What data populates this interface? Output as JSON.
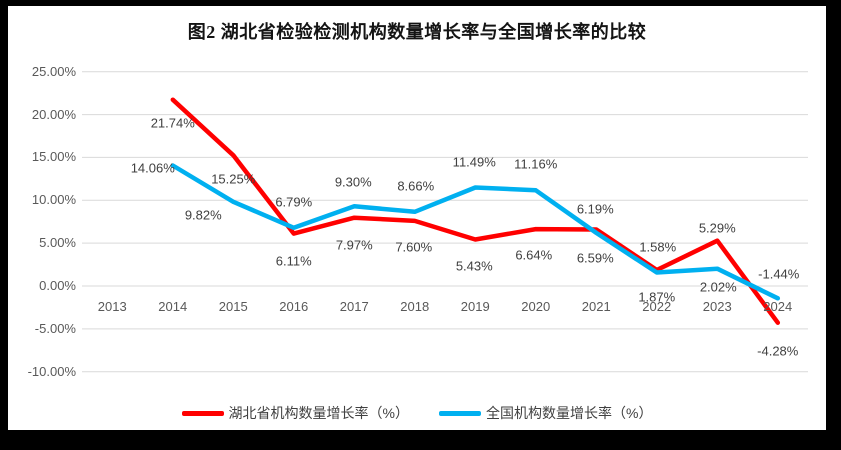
{
  "window": {
    "frame_color": "#000000",
    "canvas_color": "#ffffff"
  },
  "chart_data": {
    "type": "line",
    "title": "图2 湖北省检验检测机构数量增长率与全国增长率的比较",
    "xlabel": "",
    "ylabel": "",
    "categories": [
      "2013",
      "2014",
      "2015",
      "2016",
      "2017",
      "2018",
      "2019",
      "2020",
      "2021",
      "2022",
      "2023",
      "2024"
    ],
    "ylim": [
      -10,
      25
    ],
    "grid": true,
    "legend_position": "bottom-center",
    "colors": {
      "grid": "#d9d9d9",
      "axis_text": "#595959",
      "data_label_text": "#404040"
    },
    "yticks": [
      {
        "value": 25,
        "label": "25.00%"
      },
      {
        "value": 20,
        "label": "20.00%"
      },
      {
        "value": 15,
        "label": "15.00%"
      },
      {
        "value": 10,
        "label": "10.00%"
      },
      {
        "value": 5,
        "label": "5.00%"
      },
      {
        "value": 0,
        "label": "0.00%"
      },
      {
        "value": -5,
        "label": "-5.00%"
      },
      {
        "value": -10,
        "label": "-10.00%"
      }
    ],
    "series": [
      {
        "id": "hubei",
        "name": "湖北省机构数量增长率（%）",
        "color": "#ff0000",
        "points": [
          {
            "x": "2014",
            "y": 21.74,
            "label": "21.74%",
            "label_offset": [
              0,
              23
            ]
          },
          {
            "x": "2015",
            "y": 15.25,
            "label": "15.25%",
            "label_offset": [
              0,
              24
            ]
          },
          {
            "x": "2016",
            "y": 6.11,
            "label": "6.11%",
            "label_offset": [
              0,
              27
            ]
          },
          {
            "x": "2017",
            "y": 7.97,
            "label": "7.97%",
            "label_offset": [
              0,
              27
            ]
          },
          {
            "x": "2018",
            "y": 7.6,
            "label": "7.60%",
            "label_offset": [
              -1,
              26
            ]
          },
          {
            "x": "2019",
            "y": 5.43,
            "label": "5.43%",
            "label_offset": [
              -1,
              27
            ]
          },
          {
            "x": "2020",
            "y": 6.64,
            "label": "6.64%",
            "label_offset": [
              -2,
              26
            ]
          },
          {
            "x": "2021",
            "y": 6.59,
            "label": "6.59%",
            "label_offset": [
              -1,
              28
            ]
          },
          {
            "x": "2022",
            "y": 1.87,
            "label": "1.87%",
            "label_offset": [
              0,
              27
            ]
          },
          {
            "x": "2023",
            "y": 5.29,
            "label": "5.29%",
            "label_offset": [
              0,
              -13
            ]
          },
          {
            "x": "2024",
            "y": -4.28,
            "label": "-4.28%",
            "label_offset": [
              0,
              28
            ]
          }
        ]
      },
      {
        "id": "national",
        "name": "全国机构数量增长率（%）",
        "color": "#00b0f0",
        "points": [
          {
            "x": "2014",
            "y": 14.06,
            "label": "14.06%",
            "label_offset": [
              -20,
              3
            ]
          },
          {
            "x": "2015",
            "y": 9.82,
            "label": "9.82%",
            "label_offset": [
              -30,
              13
            ]
          },
          {
            "x": "2016",
            "y": 6.79,
            "label": "6.79%",
            "label_offset": [
              0,
              -26
            ]
          },
          {
            "x": "2017",
            "y": 9.3,
            "label": "9.30%",
            "label_offset": [
              -1,
              -24
            ]
          },
          {
            "x": "2018",
            "y": 8.66,
            "label": "8.66%",
            "label_offset": [
              1,
              -26
            ]
          },
          {
            "x": "2019",
            "y": 11.49,
            "label": "11.49%",
            "label_offset": [
              -1,
              -26
            ]
          },
          {
            "x": "2020",
            "y": 11.16,
            "label": "11.16%",
            "label_offset": [
              0,
              -26
            ]
          },
          {
            "x": "2021",
            "y": 6.19,
            "label": "6.19%",
            "label_offset": [
              -1,
              -24
            ]
          },
          {
            "x": "2022",
            "y": 1.58,
            "label": "1.58%",
            "label_offset": [
              1,
              -25
            ]
          },
          {
            "x": "2023",
            "y": 2.02,
            "label": "2.02%",
            "label_offset": [
              1,
              18
            ]
          },
          {
            "x": "2024",
            "y": -1.44,
            "label": "-1.44%",
            "label_offset": [
              1,
              -24
            ]
          }
        ]
      }
    ]
  }
}
